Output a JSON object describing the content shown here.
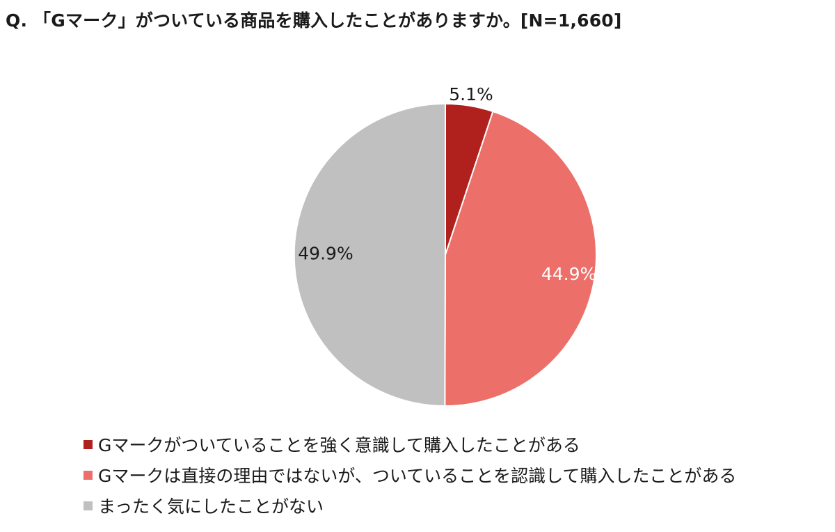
{
  "chart_data": {
    "type": "pie",
    "title": "Q. 「Gマーク」がついている商品を購入したことがありますか。[N=1,660]",
    "slices": [
      {
        "label": "Gマークがついていることを強く意識して購入したことがある",
        "value": 5.1,
        "display": "5.1%",
        "color": "#b0201d"
      },
      {
        "label": "Gマークは直接の理由ではないが、ついていることを認識して購入したことがある",
        "value": 44.9,
        "display": "44.9%",
        "color": "#ec6f6a"
      },
      {
        "label": "まったく気にしたことがない",
        "value": 49.9,
        "display": "49.9%",
        "color": "#c0c0c0"
      }
    ],
    "start_angle": "12 o'clock",
    "direction": "clockwise",
    "legend_position": "bottom-left"
  }
}
